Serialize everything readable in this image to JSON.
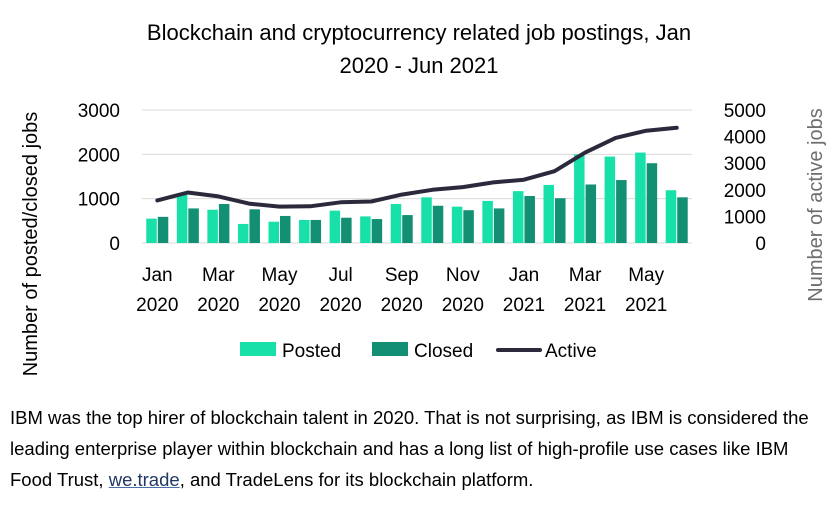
{
  "chart_data": {
    "type": "bar",
    "title": [
      "Blockchain and cryptocurrency related job postings, Jan",
      "2020 - Jun 2021"
    ],
    "ylabel": "Number of posted/closed jobs",
    "y2label": "Number of active jobs",
    "ylim": [
      0,
      3000
    ],
    "y2lim": [
      0,
      5000
    ],
    "yticks": [
      "0",
      "1000",
      "2000",
      "3000"
    ],
    "y2ticks": [
      "0",
      "1000",
      "2000",
      "3000",
      "4000",
      "5000"
    ],
    "categories": [
      "Jan 2020",
      "Feb 2020",
      "Mar 2020",
      "Apr 2020",
      "May 2020",
      "Jun 2020",
      "Jul 2020",
      "Aug 2020",
      "Sep 2020",
      "Oct 2020",
      "Nov 2020",
      "Dec 2020",
      "Jan 2021",
      "Feb 2021",
      "Mar 2021",
      "Apr 2021",
      "May 2021",
      "Jun 2021"
    ],
    "xtick_labels": [
      {
        "index": 0,
        "lines": [
          "Jan",
          "2020"
        ]
      },
      {
        "index": 2,
        "lines": [
          "Mar",
          "2020"
        ]
      },
      {
        "index": 4,
        "lines": [
          "May",
          "2020"
        ]
      },
      {
        "index": 6,
        "lines": [
          "Jul",
          "2020"
        ]
      },
      {
        "index": 8,
        "lines": [
          "Sep",
          "2020"
        ]
      },
      {
        "index": 10,
        "lines": [
          "Nov",
          "2020"
        ]
      },
      {
        "index": 12,
        "lines": [
          "Jan",
          "2021"
        ]
      },
      {
        "index": 14,
        "lines": [
          "Mar",
          "2021"
        ]
      },
      {
        "index": 16,
        "lines": [
          "May",
          "2021"
        ]
      }
    ],
    "series": [
      {
        "name": "Posted",
        "type": "bar",
        "axis": "left",
        "color": "#17e0a8",
        "values": [
          550,
          1120,
          750,
          430,
          480,
          520,
          730,
          600,
          880,
          1030,
          820,
          950,
          1170,
          1310,
          2000,
          1950,
          2040,
          1190
        ]
      },
      {
        "name": "Closed",
        "type": "bar",
        "axis": "left",
        "color": "#138f73",
        "values": [
          590,
          780,
          880,
          760,
          610,
          520,
          570,
          540,
          630,
          840,
          740,
          780,
          1060,
          1010,
          1320,
          1420,
          1800,
          1030
        ]
      },
      {
        "name": "Active",
        "type": "line",
        "axis": "right",
        "color": "#2a2a3c",
        "values": [
          1600,
          1900,
          1750,
          1480,
          1370,
          1380,
          1530,
          1560,
          1820,
          2000,
          2100,
          2280,
          2380,
          2700,
          3400,
          3950,
          4220,
          4330
        ]
      }
    ],
    "legend_position": "bottom",
    "grid": true
  },
  "caption": {
    "before_link": "IBM was the top hirer of blockchain talent in 2020. That is not surprising, as IBM is considered the leading enterprise player within blockchain and has a long list of high-profile use cases like IBM Food Trust, ",
    "link": "we.trade",
    "after_link": ", and TradeLens for its blockchain platform."
  }
}
